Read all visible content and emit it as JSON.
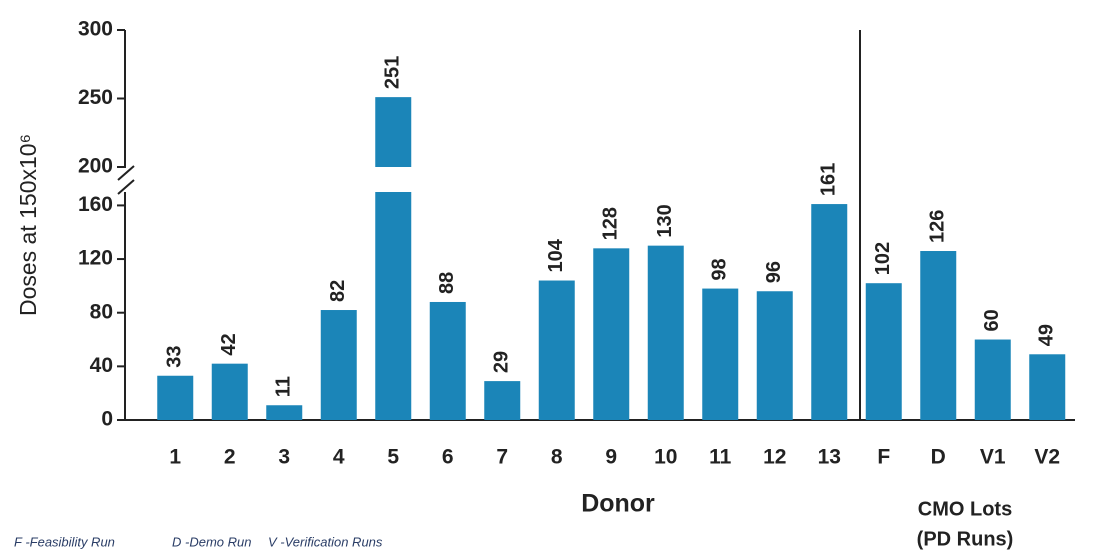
{
  "chart_data": {
    "type": "bar",
    "y_label": "Doses at 150x10⁶",
    "x_label": "Donor",
    "group_label": [
      "CMO Lots",
      "(PD Runs)"
    ],
    "notes": [
      "F -Feasibility Run",
      "D -Demo Run",
      "V -Verification Runs"
    ],
    "categories": [
      "1",
      "2",
      "3",
      "4",
      "5",
      "6",
      "7",
      "8",
      "9",
      "10",
      "11",
      "12",
      "13",
      "F",
      "D",
      "V1",
      "V2"
    ],
    "values": [
      33,
      42,
      11,
      82,
      251,
      88,
      29,
      104,
      128,
      130,
      98,
      96,
      161,
      102,
      126,
      60,
      49
    ],
    "color": "#1b85b8",
    "ylim": [
      0,
      300
    ],
    "ybreak": [
      170,
      200
    ],
    "yticks": [
      0,
      40,
      80,
      120,
      160,
      200,
      250,
      300
    ]
  }
}
